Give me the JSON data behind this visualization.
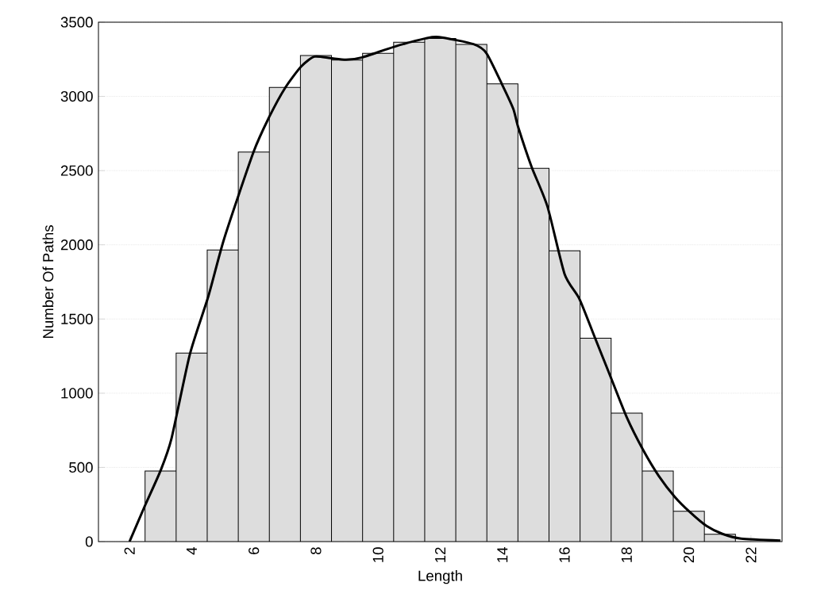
{
  "chart_data": {
    "type": "histogram",
    "xlabel": "Length",
    "ylabel": "Number Of Paths",
    "bins": [
      2.5,
      3.5,
      4.5,
      5.5,
      6.5,
      7.5,
      8.5,
      9.5,
      10.5,
      11.5,
      12.5,
      13.5,
      14.5,
      15.5,
      16.5,
      17.5,
      18.5,
      19.5,
      20.5,
      21.5
    ],
    "values": [
      475,
      1270,
      1965,
      2625,
      3060,
      3275,
      3245,
      3290,
      3365,
      3390,
      3350,
      3085,
      2515,
      1960,
      1370,
      865,
      475,
      205,
      50
    ],
    "color": "#dddddd",
    "series": [
      {
        "type": "line",
        "color": "#000000",
        "x": [
          2,
          2.49,
          3.0,
          3.35,
          3.94,
          4.54,
          5.05,
          5.99,
          6.5,
          7.01,
          7.52,
          7.95,
          8.46,
          8.97,
          9.49,
          10.51,
          11.53,
          11.96,
          13.07,
          13.49,
          14.0,
          14.35,
          14.51,
          14.94,
          15.45,
          16.0,
          16.48,
          16.99,
          17.5,
          18.01,
          18.52,
          19.03,
          19.55,
          20.06,
          20.57,
          21.08,
          21.68,
          22.95
        ],
        "values": [
          0,
          239,
          479,
          694,
          1261,
          1655,
          2044,
          2625,
          2863,
          3058,
          3201,
          3268,
          3258,
          3247,
          3263,
          3334,
          3391,
          3400,
          3352,
          3290,
          3076,
          2916,
          2792,
          2525,
          2258,
          1804,
          1635,
          1368,
          1101,
          834,
          621,
          443,
          301,
          194,
          105,
          52,
          20,
          7
        ]
      }
    ],
    "xlim": [
      1,
      23
    ],
    "ylim": [
      0,
      3500
    ],
    "xticks": [
      2,
      4,
      6,
      8,
      10,
      12,
      14,
      16,
      18,
      20,
      22
    ],
    "yticks": [
      0,
      500,
      1000,
      1500,
      2000,
      2500,
      3000,
      3500
    ],
    "grid": "y"
  }
}
